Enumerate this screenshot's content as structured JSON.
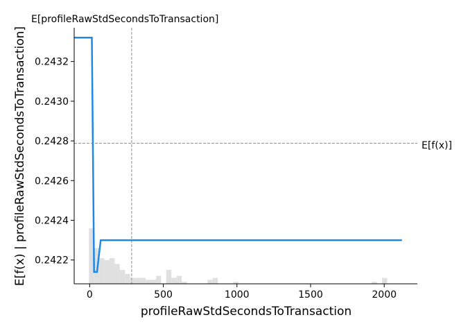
{
  "chart_data": {
    "type": "line",
    "title": "",
    "top_annotation": "E[profileRawStdSecondsToTransaction]",
    "right_annotation": "E[f(x)]",
    "xlabel": "profileRawStdSecondsToTransaction",
    "ylabel": "E[f(x) | profileRawStdSecondsToTransaction]",
    "xlim": [
      -105,
      2225
    ],
    "ylim": [
      0.24208,
      0.24337
    ],
    "x_ticks": [
      0,
      500,
      1000,
      1500,
      2000
    ],
    "x_tick_labels": [
      "0",
      "500",
      "1000",
      "1500",
      "2000"
    ],
    "y_ticks": [
      0.2422,
      0.2424,
      0.2426,
      0.2428,
      0.243,
      0.2432
    ],
    "y_tick_labels": [
      "0.2422",
      "0.2424",
      "0.2426",
      "0.2428",
      "0.2430",
      "0.2432"
    ],
    "grid": false,
    "reference_lines": {
      "vertical_x": 285,
      "horizontal_y": 0.242788
    },
    "series": [
      {
        "color": "#1E88E5",
        "x": [
          -105,
          5,
          15,
          30,
          50,
          75,
          100,
          2120
        ],
        "y": [
          0.24332,
          0.24332,
          0.24332,
          0.24214,
          0.24214,
          0.2423,
          0.2423,
          0.2423
        ]
      }
    ],
    "histogram": {
      "color": "#e0e0e0",
      "bin_width": 35,
      "bins_start": [
        -5,
        30,
        65,
        100,
        135,
        170,
        205,
        240,
        275,
        310,
        345,
        380,
        415,
        450,
        520,
        555,
        590,
        625,
        660,
        695,
        730,
        800,
        835,
        870,
        975,
        1220,
        1290,
        1810,
        1845,
        1915,
        1985
      ],
      "heights": [
        0.24236,
        0.24226,
        0.24221,
        0.2422,
        0.24221,
        0.24218,
        0.24215,
        0.24213,
        0.24211,
        0.24211,
        0.24211,
        0.2421,
        0.2421,
        0.24212,
        0.24215,
        0.24211,
        0.24212,
        0.24209,
        0.24208,
        0.24208,
        0.24208,
        0.2421,
        0.24211,
        0.24208,
        0.24209,
        0.24208,
        0.24208,
        0.24208,
        0.24208,
        0.24209,
        0.24211
      ]
    }
  }
}
